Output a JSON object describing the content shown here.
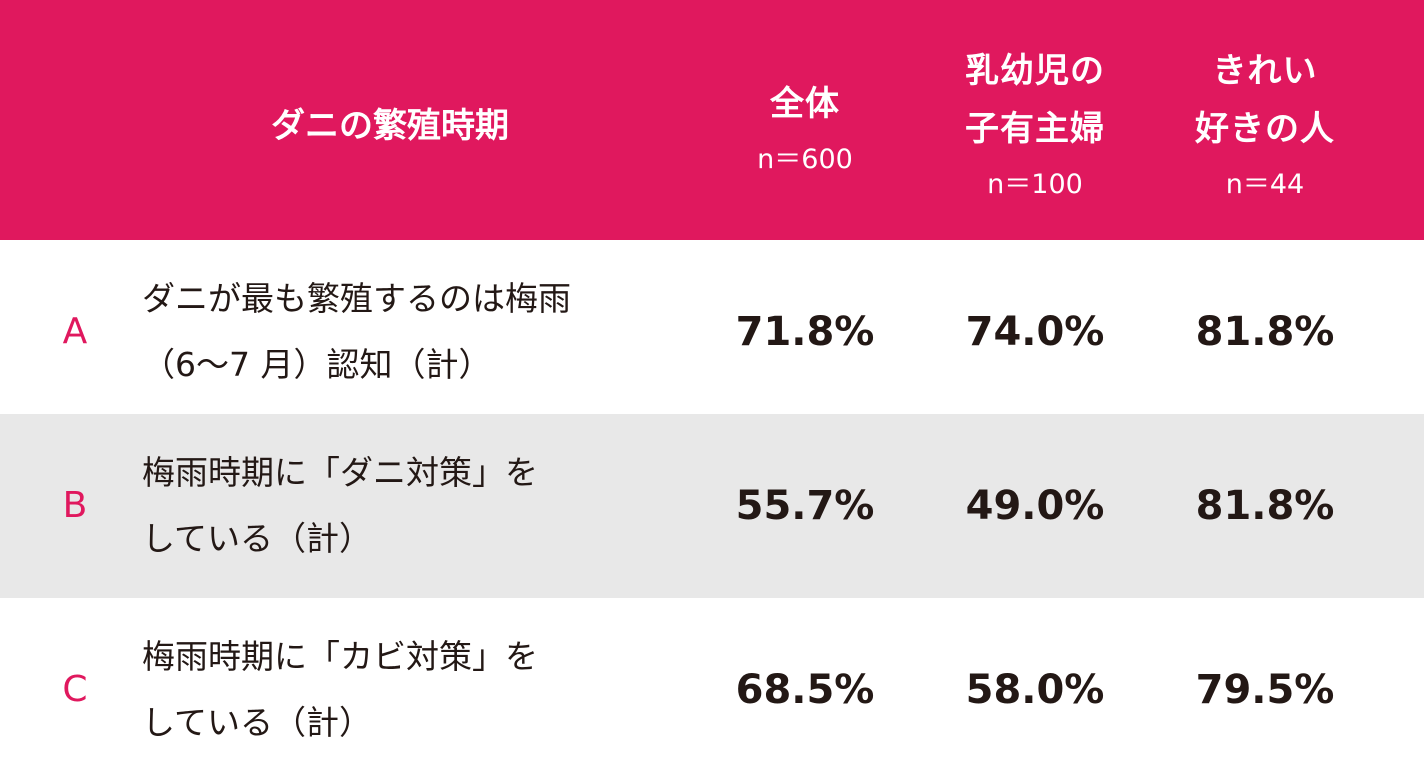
{
  "colors": {
    "header_bg": "#e0185e",
    "header_text": "#ffffff",
    "label_accent": "#e0185e",
    "body_text": "#231815",
    "shade_row": "#e8e8e8"
  },
  "header": {
    "topic": "ダニの繁殖時期",
    "columns": [
      {
        "lines": [
          "全体"
        ],
        "n": "n＝600"
      },
      {
        "lines": [
          "乳幼児の",
          "子有主婦"
        ],
        "n": "n＝100"
      },
      {
        "lines": [
          "きれい",
          "好きの人"
        ],
        "n": "n＝44"
      }
    ]
  },
  "rows": [
    {
      "label": "A",
      "text_lines": [
        "ダニが最も繁殖するのは梅雨",
        "（6～7 月）認知（計）"
      ],
      "values": [
        "71.8%",
        "74.0%",
        "81.8%"
      ]
    },
    {
      "label": "B",
      "text_lines": [
        "梅雨時期に「ダニ対策」を",
        "している（計）"
      ],
      "values": [
        "55.7%",
        "49.0%",
        "81.8%"
      ]
    },
    {
      "label": "C",
      "text_lines": [
        "梅雨時期に「カビ対策」を",
        "している（計）"
      ],
      "values": [
        "68.5%",
        "58.0%",
        "79.5%"
      ]
    }
  ],
  "chart_data": {
    "type": "table",
    "title": "ダニの繁殖時期",
    "columns": [
      "全体 n＝600",
      "乳幼児の子有主婦 n＝100",
      "きれい好きの人 n＝44"
    ],
    "series": [
      {
        "name": "全体",
        "values": [
          71.8,
          55.7,
          68.5
        ]
      },
      {
        "name": "乳幼児の子有主婦",
        "values": [
          74.0,
          49.0,
          58.0
        ]
      },
      {
        "name": "きれい好きの人",
        "values": [
          81.8,
          81.8,
          79.5
        ]
      }
    ],
    "categories": [
      "A",
      "B",
      "C"
    ]
  }
}
